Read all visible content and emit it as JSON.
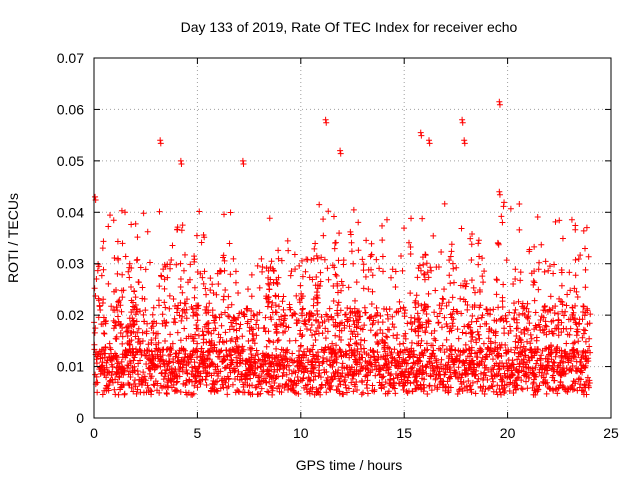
{
  "chart_data": {
    "type": "scatter",
    "title": "Day 133 of 2019, Rate Of TEC Index for receiver echo",
    "xlabel": "GPS time / hours",
    "ylabel": "ROTI / TECUs",
    "xlim": [
      0,
      25
    ],
    "ylim": [
      0,
      0.07
    ],
    "x_ticks": [
      "0",
      "5",
      "10",
      "15",
      "20",
      "25"
    ],
    "y_ticks": [
      "0",
      "0.01",
      "0.02",
      "0.03",
      "0.04",
      "0.05",
      "0.06",
      "0.07"
    ],
    "grid": true,
    "marker": "+",
    "color": "#ff0000",
    "x_range_of_data": [
      0,
      24
    ],
    "baseline_level": 0.01,
    "notable_points": [
      {
        "x": 0.05,
        "y": 0.043
      },
      {
        "x": 3.2,
        "y": 0.054
      },
      {
        "x": 4.2,
        "y": 0.05
      },
      {
        "x": 7.2,
        "y": 0.05
      },
      {
        "x": 11.2,
        "y": 0.058
      },
      {
        "x": 11.9,
        "y": 0.052
      },
      {
        "x": 15.8,
        "y": 0.0555
      },
      {
        "x": 16.2,
        "y": 0.054
      },
      {
        "x": 17.8,
        "y": 0.058
      },
      {
        "x": 17.9,
        "y": 0.054
      },
      {
        "x": 19.6,
        "y": 0.0615
      },
      {
        "x": 19.6,
        "y": 0.044
      }
    ]
  }
}
